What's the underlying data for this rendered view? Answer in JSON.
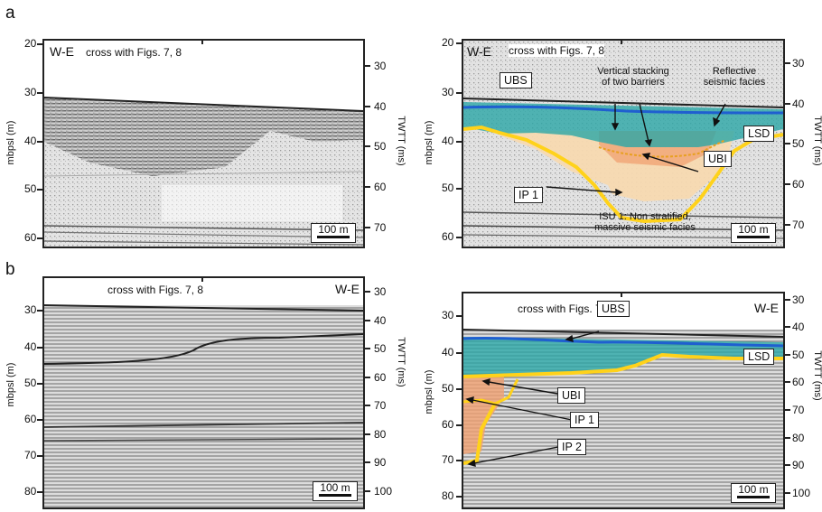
{
  "panels": {
    "a": {
      "letter": "a"
    },
    "b": {
      "letter": "b"
    }
  },
  "labels": {
    "we": "W-E",
    "cross": "cross with Figs. 7, 8",
    "ylabel": "mbpsl (m)",
    "twtt": "TWTT (ms)",
    "scale": "100 m"
  },
  "a_left": {
    "depth_ticks": [
      "20",
      "30",
      "40",
      "50",
      "60"
    ],
    "twtt_ticks": [
      "30",
      "40",
      "50",
      "60",
      "70"
    ]
  },
  "a_right": {
    "depth_ticks": [
      "20",
      "30",
      "40",
      "50",
      "60"
    ],
    "twtt_ticks": [
      "30",
      "40",
      "50",
      "60",
      "70"
    ],
    "UBS": "UBS",
    "LSD": "LSD",
    "UBI": "UBI",
    "IP1": "IP 1",
    "note_vertical_l1": "Vertical stacking",
    "note_vertical_l2": "of two barriers",
    "note_reflective_l1": "Reflective",
    "note_reflective_l2": "seismic facies",
    "note_isu_l1": "ISU 1: Non stratified,",
    "note_isu_l2": "massive seismic facies"
  },
  "b_left": {
    "depth_ticks": [
      "30",
      "40",
      "50",
      "60",
      "70",
      "80"
    ],
    "twtt_ticks": [
      "30",
      "40",
      "50",
      "60",
      "70",
      "80",
      "90",
      "100"
    ]
  },
  "b_right": {
    "depth_ticks": [
      "30",
      "40",
      "50",
      "60",
      "70",
      "80"
    ],
    "twtt_ticks": [
      "30",
      "40",
      "50",
      "60",
      "70",
      "80",
      "90",
      "100"
    ],
    "UBS": "UBS",
    "LSD": "LSD",
    "UBI": "UBI",
    "IP1": "IP 1",
    "IP2": "IP 2"
  },
  "colors": {
    "blue_horizon": "#1f5fd0",
    "yellow_horizon": "#ffd21a",
    "teal_fill": "#2aa6a6",
    "orange_fill": "#f0a070",
    "peach_fill": "#f7d9b0"
  }
}
